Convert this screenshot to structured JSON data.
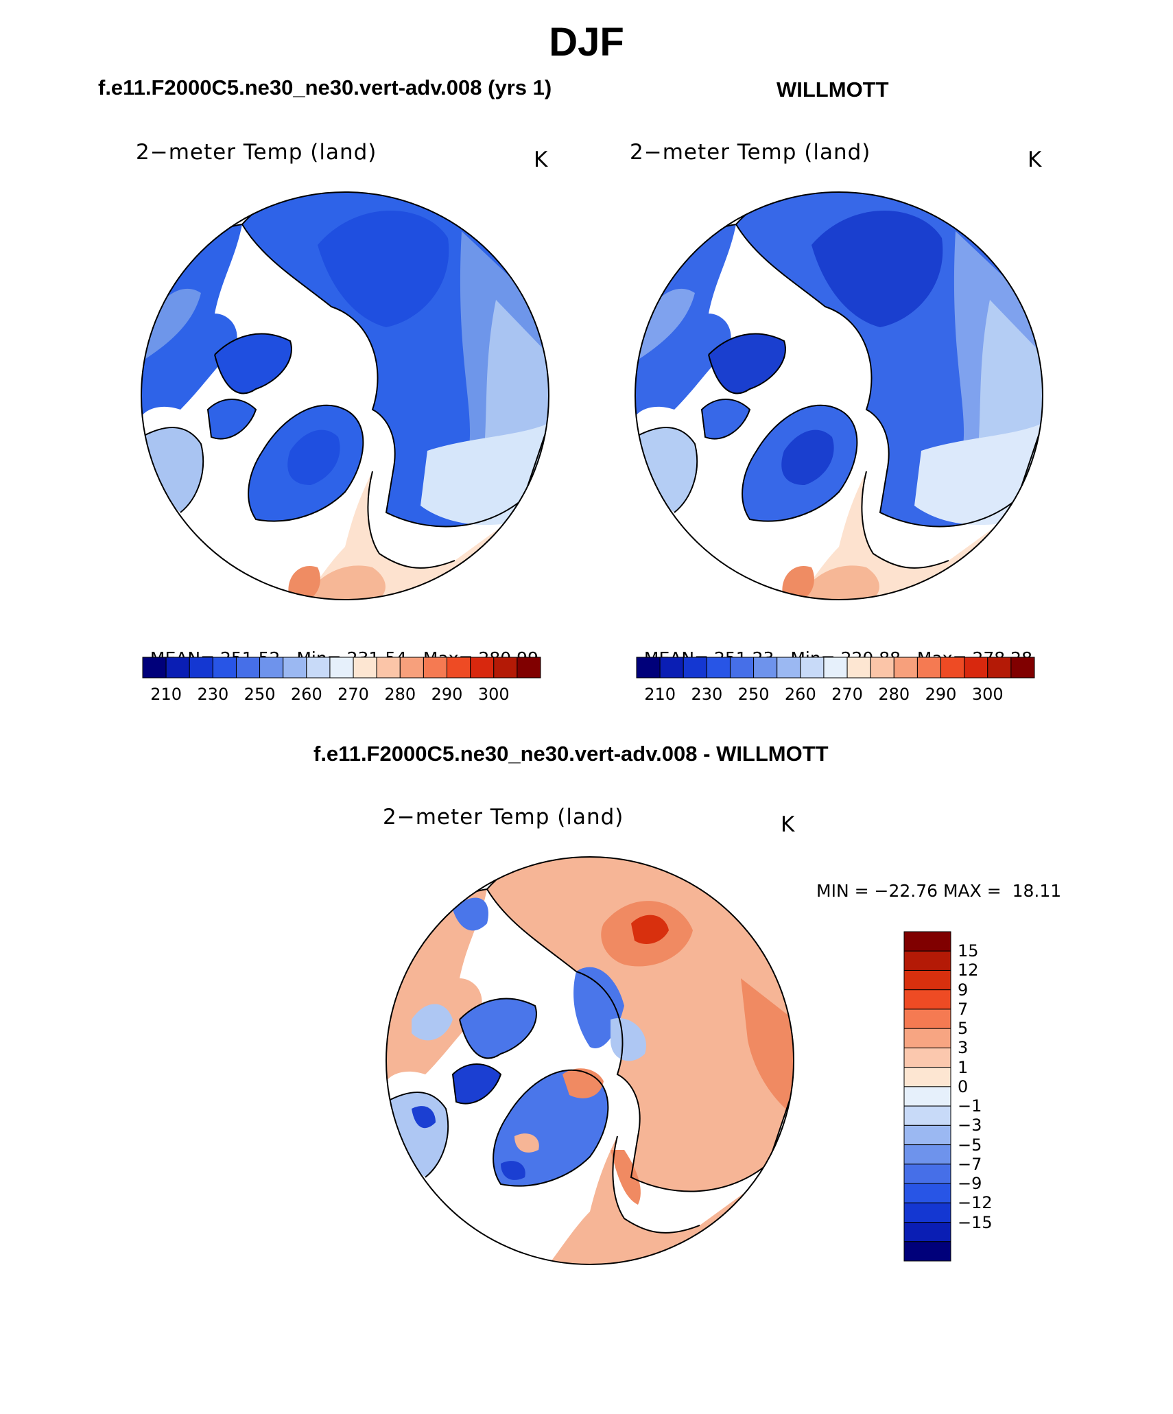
{
  "title": "DJF",
  "panels": [
    {
      "case_title": "f.e11.F2000C5.ne30_ne30.vert-adv.008 (yrs 1)",
      "variable": "2−meter Temp (land)",
      "units": "K",
      "stats": {
        "mean_label": "MEAN=",
        "mean": "251.52",
        "min_label": "Min=",
        "min": "231.54",
        "max_label": "Max=",
        "max": "280.99"
      }
    },
    {
      "case_title": "WILLMOTT",
      "variable": "2−meter Temp (land)",
      "units": "K",
      "stats": {
        "mean_label": "MEAN=",
        "mean": "251.23",
        "min_label": "Min=",
        "min": "220.88",
        "max_label": "Max=",
        "max": "278.28"
      }
    }
  ],
  "difference": {
    "case_title": "f.e11.F2000C5.ne30_ne30.vert-adv.008 - WILLMOTT",
    "variable": "2−meter Temp (land)",
    "units": "K",
    "min_label": "MIN =",
    "min": "−22.76",
    "max_label": "MAX =",
    "max": "18.11"
  },
  "colorbar_abs": {
    "colors": [
      "#00007a",
      "#0a1eb4",
      "#1437d2",
      "#2855e6",
      "#466fe8",
      "#6e93ec",
      "#9bb8f2",
      "#c8daf8",
      "#e6f0fb",
      "#fde6d2",
      "#fbc5a8",
      "#f7a07c",
      "#f57a52",
      "#ee4b24",
      "#d8280e",
      "#b41a06",
      "#800000"
    ],
    "tick_labels": [
      "210",
      "230",
      "250",
      "260",
      "270",
      "280",
      "290",
      "300"
    ],
    "tick_index": [
      1,
      3,
      5,
      7,
      9,
      11,
      13,
      15
    ]
  },
  "colorbar_diff": {
    "colors": [
      "#800000",
      "#b41a06",
      "#d8300e",
      "#ee4b24",
      "#f57a52",
      "#f7a582",
      "#fbc8ae",
      "#fde6d2",
      "#e6f0fb",
      "#c8daf8",
      "#9bb8f2",
      "#6e93ec",
      "#466fe8",
      "#2855e6",
      "#1437d2",
      "#0a1eb4",
      "#00007a"
    ],
    "tick_labels": [
      "15",
      "12",
      "9",
      "7",
      "5",
      "3",
      "1",
      "0",
      "−1",
      "−3",
      "−5",
      "−7",
      "−9",
      "−12",
      "−15"
    ]
  },
  "map_field_colors": {
    "model": {
      "base": "#2e63e8",
      "deep": "#1f4fe0",
      "mid": "#6e96ea",
      "light": "#a9c4f2",
      "pale": "#d6e6fa",
      "warm": "#fde2cf",
      "warmer": "#f6b796",
      "warmest": "#ef8c63"
    },
    "obs": {
      "base": "#3768e8",
      "deep": "#1a3fcf",
      "mid": "#7fa2ee",
      "light": "#b4cdf4",
      "pale": "#dce9fb",
      "warm": "#fde2cf",
      "warmer": "#f6b796",
      "warmest": "#ef8c63"
    },
    "diff": {
      "warm1": "#f6b596",
      "warm2": "#f08a62",
      "warm3": "#d8300e",
      "cool1": "#aec7f3",
      "cool2": "#4a76ea",
      "cool3": "#1b3fd2"
    }
  }
}
